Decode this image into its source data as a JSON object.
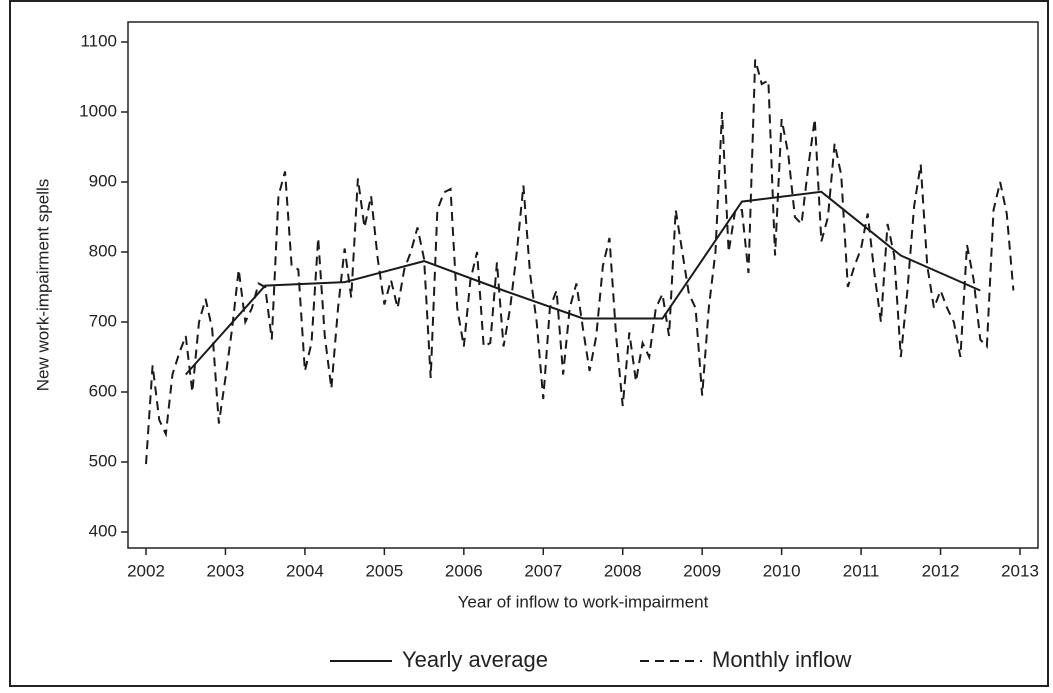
{
  "chart_data": {
    "type": "line",
    "xlabel": "Year of inflow to work-impairment",
    "ylabel": "New work-impairment spells",
    "xlim": [
      2002,
      2013
    ],
    "xticks": [
      2002,
      2003,
      2004,
      2005,
      2006,
      2007,
      2008,
      2009,
      2010,
      2011,
      2012,
      2013
    ],
    "ylim": [
      400,
      1100
    ],
    "yticks": [
      400,
      500,
      600,
      700,
      800,
      900,
      1000,
      1100
    ],
    "grid": false,
    "series": [
      {
        "name": "Yearly average",
        "color": "#1a1a1a",
        "dash": "solid",
        "x": [
          2002.5,
          2003.5,
          2004.5,
          2005.5,
          2006.5,
          2007.5,
          2008.5,
          2009.5,
          2010.5,
          2011.5,
          2012.5
        ],
        "values": [
          625,
          752,
          757,
          787,
          745,
          705,
          705,
          872,
          886,
          795,
          745
        ]
      },
      {
        "name": "Monthly inflow",
        "color": "#1a1a1a",
        "dash": "dashed",
        "x": [
          2002,
          2002.083,
          2002.167,
          2002.25,
          2002.333,
          2002.417,
          2002.5,
          2002.583,
          2002.667,
          2002.75,
          2002.833,
          2002.917,
          2003,
          2003.083,
          2003.167,
          2003.25,
          2003.333,
          2003.417,
          2003.5,
          2003.583,
          2003.667,
          2003.75,
          2003.833,
          2003.917,
          2004,
          2004.083,
          2004.167,
          2004.25,
          2004.333,
          2004.417,
          2004.5,
          2004.583,
          2004.667,
          2004.75,
          2004.833,
          2004.917,
          2005,
          2005.083,
          2005.167,
          2005.25,
          2005.333,
          2005.417,
          2005.5,
          2005.583,
          2005.667,
          2005.75,
          2005.833,
          2005.917,
          2006,
          2006.083,
          2006.167,
          2006.25,
          2006.333,
          2006.417,
          2006.5,
          2006.583,
          2006.667,
          2006.75,
          2006.833,
          2006.917,
          2007,
          2007.083,
          2007.167,
          2007.25,
          2007.333,
          2007.417,
          2007.5,
          2007.583,
          2007.667,
          2007.75,
          2007.833,
          2007.917,
          2008,
          2008.083,
          2008.167,
          2008.25,
          2008.333,
          2008.417,
          2008.5,
          2008.583,
          2008.667,
          2008.75,
          2008.833,
          2008.917,
          2009,
          2009.083,
          2009.167,
          2009.25,
          2009.333,
          2009.417,
          2009.5,
          2009.583,
          2009.667,
          2009.75,
          2009.833,
          2009.917,
          2010,
          2010.083,
          2010.167,
          2010.25,
          2010.333,
          2010.417,
          2010.5,
          2010.583,
          2010.667,
          2010.75,
          2010.833,
          2010.917,
          2011,
          2011.083,
          2011.167,
          2011.25,
          2011.333,
          2011.417,
          2011.5,
          2011.583,
          2011.667,
          2011.75,
          2011.833,
          2011.917,
          2012,
          2012.083,
          2012.167,
          2012.25,
          2012.333,
          2012.417,
          2012.5,
          2012.583,
          2012.667,
          2012.75,
          2012.833,
          2012.917
        ],
        "values": [
          497,
          638,
          560,
          540,
          625,
          655,
          680,
          600,
          700,
          733,
          690,
          555,
          620,
          690,
          775,
          700,
          720,
          755,
          750,
          675,
          880,
          915,
          780,
          775,
          630,
          670,
          820,
          680,
          605,
          720,
          805,
          735,
          905,
          835,
          880,
          790,
          725,
          760,
          720,
          775,
          800,
          835,
          790,
          620,
          860,
          885,
          890,
          720,
          665,
          760,
          800,
          665,
          670,
          785,
          665,
          720,
          800,
          895,
          770,
          700,
          590,
          720,
          745,
          625,
          720,
          755,
          690,
          630,
          680,
          780,
          820,
          680,
          580,
          685,
          615,
          670,
          650,
          720,
          740,
          680,
          860,
          800,
          740,
          720,
          595,
          720,
          800,
          1000,
          800,
          860,
          860,
          770,
          1075,
          1040,
          1045,
          795,
          990,
          940,
          850,
          840,
          920,
          990,
          815,
          850,
          955,
          910,
          750,
          780,
          805,
          855,
          770,
          700,
          840,
          795,
          650,
          745,
          865,
          925,
          780,
          720,
          745,
          720,
          700,
          650,
          810,
          760,
          675,
          665,
          860,
          900,
          855,
          745
        ]
      }
    ]
  }
}
